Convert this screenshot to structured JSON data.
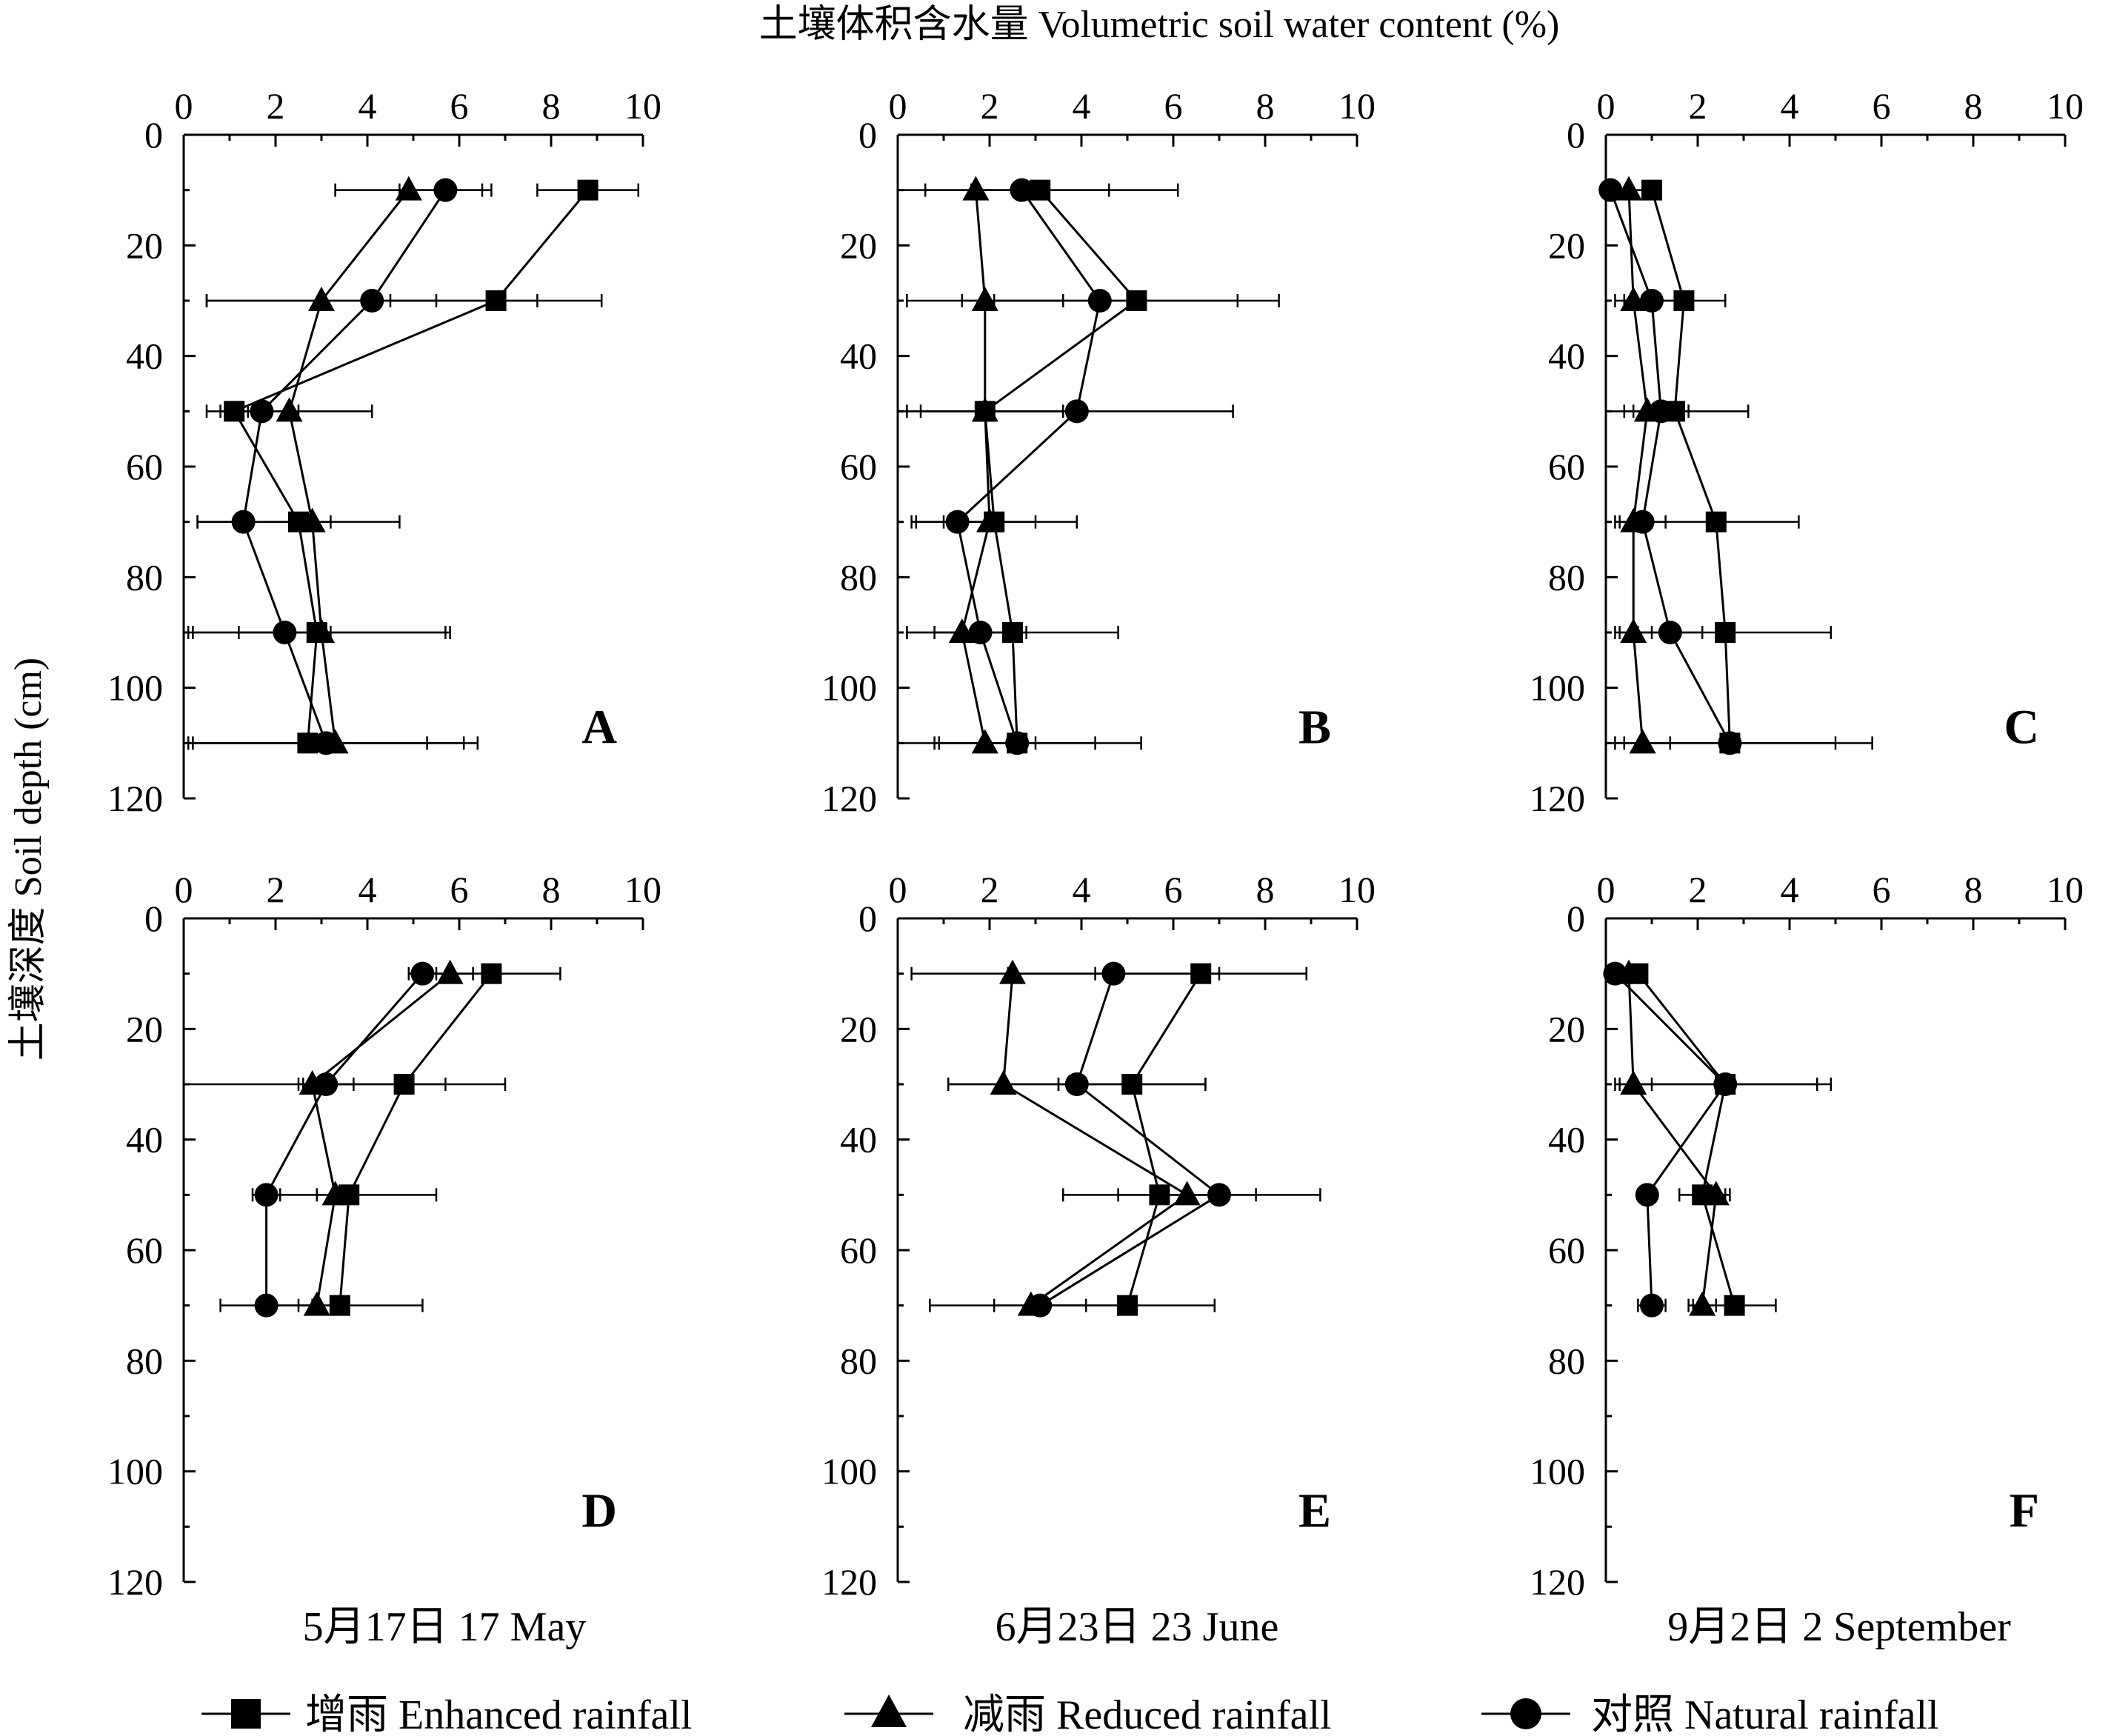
{
  "figure": {
    "xlabel": "土壤体积含水量 Volumetric soil water content (%)",
    "ylabel": "土壤深度 Soil depth (cm)",
    "column_labels": [
      "5月17日 17 May",
      "6月23日 23 June",
      "9月2日 2 September"
    ],
    "legend": [
      {
        "marker": "square",
        "label": "增雨 Enhanced rainfall"
      },
      {
        "marker": "triangle",
        "label": "减雨 Reduced rainfall"
      },
      {
        "marker": "circle",
        "label": "对照  Natural rainfall"
      }
    ],
    "x_ticks": [
      "0",
      "2",
      "4",
      "6",
      "8",
      "10"
    ],
    "y_ticks": [
      "0",
      "20",
      "40",
      "60",
      "80",
      "100",
      "120"
    ]
  },
  "chart_data": [
    {
      "panel": "A",
      "type": "line",
      "xlim": [
        0,
        10
      ],
      "ylim": [
        0,
        120
      ],
      "y_inverted": true,
      "series": [
        {
          "name": "增雨 Enhanced rainfall",
          "marker": "square",
          "points": [
            {
              "x": 8.8,
              "y": 10,
              "err": 1.1
            },
            {
              "x": 6.8,
              "y": 30,
              "err": 2.3
            },
            {
              "x": 1.1,
              "y": 50,
              "err": 0.3
            },
            {
              "x": 2.5,
              "y": 70,
              "err": 2.2
            },
            {
              "x": 2.9,
              "y": 90,
              "err": 2.8
            },
            {
              "x": 2.7,
              "y": 110,
              "err": 2.6
            }
          ]
        },
        {
          "name": "减雨 Reduced rainfall",
          "marker": "triangle",
          "points": [
            {
              "x": 4.9,
              "y": 10,
              "err": 1.6
            },
            {
              "x": 3.0,
              "y": 30,
              "err": 2.5
            },
            {
              "x": 2.3,
              "y": 50,
              "err": 1.8
            },
            {
              "x": 2.8,
              "y": 70,
              "err": 0.4
            },
            {
              "x": 3.0,
              "y": 90,
              "err": 2.8
            },
            {
              "x": 3.3,
              "y": 110,
              "err": 3.1
            }
          ]
        },
        {
          "name": "对照  Natural rainfall",
          "marker": "circle",
          "points": [
            {
              "x": 5.7,
              "y": 10,
              "err": 1.0
            },
            {
              "x": 4.1,
              "y": 30,
              "err": 3.6
            },
            {
              "x": 1.7,
              "y": 50,
              "err": 0.8
            },
            {
              "x": 1.3,
              "y": 70,
              "err": 1.0
            },
            {
              "x": 2.2,
              "y": 90,
              "err": 1.0
            },
            {
              "x": 3.1,
              "y": 110,
              "err": 3.0
            }
          ]
        }
      ]
    },
    {
      "panel": "B",
      "type": "line",
      "xlim": [
        0,
        10
      ],
      "ylim": [
        0,
        120
      ],
      "y_inverted": true,
      "series": [
        {
          "name": "增雨 Enhanced rainfall",
          "marker": "square",
          "points": [
            {
              "x": 3.1,
              "y": 10,
              "err": 1.5
            },
            {
              "x": 5.2,
              "y": 30,
              "err": 3.1
            },
            {
              "x": 1.9,
              "y": 50,
              "err": 1.9
            },
            {
              "x": 2.1,
              "y": 70,
              "err": 1.8
            },
            {
              "x": 2.5,
              "y": 90,
              "err": 2.3
            },
            {
              "x": 2.6,
              "y": 110,
              "err": 2.7
            }
          ]
        },
        {
          "name": "减雨 Reduced rainfall",
          "marker": "triangle",
          "points": [
            {
              "x": 1.7,
              "y": 10,
              "err": 1.1
            },
            {
              "x": 1.9,
              "y": 30,
              "err": 1.7
            },
            {
              "x": 1.9,
              "y": 50,
              "err": 1.7
            },
            {
              "x": 2.0,
              "y": 70,
              "err": 1.0
            },
            {
              "x": 1.4,
              "y": 90,
              "err": 1.2
            },
            {
              "x": 1.9,
              "y": 110,
              "err": 1.1
            }
          ]
        },
        {
          "name": "对照  Natural rainfall",
          "marker": "circle",
          "points": [
            {
              "x": 2.7,
              "y": 10,
              "err": 3.4
            },
            {
              "x": 4.4,
              "y": 30,
              "err": 3.0
            },
            {
              "x": 3.9,
              "y": 50,
              "err": 3.4
            },
            {
              "x": 1.3,
              "y": 70,
              "err": 0.9
            },
            {
              "x": 1.8,
              "y": 90,
              "err": 1.0
            },
            {
              "x": 2.6,
              "y": 110,
              "err": 1.7
            }
          ]
        }
      ]
    },
    {
      "panel": "C",
      "type": "line",
      "xlim": [
        0,
        10
      ],
      "ylim": [
        0,
        120
      ],
      "y_inverted": true,
      "series": [
        {
          "name": "增雨 Enhanced rainfall",
          "marker": "square",
          "points": [
            {
              "x": 1.0,
              "y": 10,
              "err": 0.2
            },
            {
              "x": 1.7,
              "y": 30,
              "err": 0.9
            },
            {
              "x": 1.5,
              "y": 50,
              "err": 1.6
            },
            {
              "x": 2.4,
              "y": 70,
              "err": 1.8
            },
            {
              "x": 2.6,
              "y": 90,
              "err": 2.3
            },
            {
              "x": 2.7,
              "y": 110,
              "err": 2.3
            }
          ]
        },
        {
          "name": "减雨 Reduced rainfall",
          "marker": "triangle",
          "points": [
            {
              "x": 0.5,
              "y": 10,
              "err": 0.4
            },
            {
              "x": 0.6,
              "y": 30,
              "err": 0.4
            },
            {
              "x": 0.9,
              "y": 50,
              "err": 0.5
            },
            {
              "x": 0.6,
              "y": 70,
              "err": 0.4
            },
            {
              "x": 0.6,
              "y": 90,
              "err": 0.4
            },
            {
              "x": 0.8,
              "y": 110,
              "err": 0.6
            }
          ]
        },
        {
          "name": "对照  Natural rainfall",
          "marker": "circle",
          "points": [
            {
              "x": 0.1,
              "y": 10,
              "err": 0.1
            },
            {
              "x": 1.0,
              "y": 30,
              "err": 0.6
            },
            {
              "x": 1.2,
              "y": 50,
              "err": 0.6
            },
            {
              "x": 0.8,
              "y": 70,
              "err": 0.5
            },
            {
              "x": 1.4,
              "y": 90,
              "err": 0.7
            },
            {
              "x": 2.7,
              "y": 110,
              "err": 3.1
            }
          ]
        }
      ]
    },
    {
      "panel": "D",
      "type": "line",
      "xlim": [
        0,
        10
      ],
      "ylim": [
        0,
        120
      ],
      "y_inverted": true,
      "series": [
        {
          "name": "增雨 Enhanced rainfall",
          "marker": "square",
          "points": [
            {
              "x": 6.7,
              "y": 10,
              "err": 1.5
            },
            {
              "x": 4.8,
              "y": 30,
              "err": 2.2
            },
            {
              "x": 3.6,
              "y": 50,
              "err": 1.9
            },
            {
              "x": 3.4,
              "y": 70,
              "err": 1.8
            }
          ]
        },
        {
          "name": "减雨 Reduced rainfall",
          "marker": "triangle",
          "points": [
            {
              "x": 5.8,
              "y": 10,
              "err": 0.5
            },
            {
              "x": 2.8,
              "y": 30,
              "err": 2.9
            },
            {
              "x": 3.3,
              "y": 50,
              "err": 0.4
            },
            {
              "x": 2.9,
              "y": 70,
              "err": 0.4
            }
          ]
        },
        {
          "name": "对照  Natural rainfall",
          "marker": "circle",
          "points": [
            {
              "x": 5.2,
              "y": 10,
              "err": 0.3
            },
            {
              "x": 3.1,
              "y": 30,
              "err": 0.6
            },
            {
              "x": 1.8,
              "y": 50,
              "err": 0.3
            },
            {
              "x": 1.8,
              "y": 70,
              "err": 1.0
            }
          ]
        }
      ]
    },
    {
      "panel": "E",
      "type": "line",
      "xlim": [
        0,
        10
      ],
      "ylim": [
        0,
        120
      ],
      "y_inverted": true,
      "series": [
        {
          "name": "增雨 Enhanced rainfall",
          "marker": "square",
          "points": [
            {
              "x": 6.6,
              "y": 10,
              "err": 2.3
            },
            {
              "x": 5.1,
              "y": 30,
              "err": 1.6
            },
            {
              "x": 5.7,
              "y": 50,
              "err": 2.1
            },
            {
              "x": 5.0,
              "y": 70,
              "err": 1.9
            }
          ]
        },
        {
          "name": "减雨 Reduced rainfall",
          "marker": "triangle",
          "points": [
            {
              "x": 2.5,
              "y": 10,
              "err": 2.2
            },
            {
              "x": 2.3,
              "y": 30,
              "err": 1.2
            },
            {
              "x": 6.3,
              "y": 50,
              "err": 0.7
            },
            {
              "x": 2.9,
              "y": 70,
              "err": 2.2
            }
          ]
        },
        {
          "name": "对照  Natural rainfall",
          "marker": "circle",
          "points": [
            {
              "x": 4.7,
              "y": 10,
              "err": 2.3
            },
            {
              "x": 3.9,
              "y": 30,
              "err": 2.8
            },
            {
              "x": 7.0,
              "y": 50,
              "err": 2.2
            },
            {
              "x": 3.1,
              "y": 70,
              "err": 1.0
            }
          ]
        }
      ]
    },
    {
      "panel": "F",
      "type": "line",
      "xlim": [
        0,
        10
      ],
      "ylim": [
        0,
        120
      ],
      "y_inverted": true,
      "series": [
        {
          "name": "增雨 Enhanced rainfall",
          "marker": "square",
          "points": [
            {
              "x": 0.7,
              "y": 10,
              "err": 0.1
            },
            {
              "x": 2.6,
              "y": 30,
              "err": 2.3
            },
            {
              "x": 2.1,
              "y": 50,
              "err": 0.5
            },
            {
              "x": 2.8,
              "y": 70,
              "err": 0.9
            }
          ]
        },
        {
          "name": "减雨 Reduced rainfall",
          "marker": "triangle",
          "points": [
            {
              "x": 0.5,
              "y": 10,
              "err": 0.1
            },
            {
              "x": 0.6,
              "y": 30,
              "err": 0.4
            },
            {
              "x": 2.4,
              "y": 50,
              "err": 0.3
            },
            {
              "x": 2.1,
              "y": 70,
              "err": 0.3
            }
          ]
        },
        {
          "name": "对照  Natural rainfall",
          "marker": "circle",
          "points": [
            {
              "x": 0.2,
              "y": 10,
              "err": 0.1
            },
            {
              "x": 2.6,
              "y": 30,
              "err": 2.0
            },
            {
              "x": 0.9,
              "y": 50,
              "err": 0.2
            },
            {
              "x": 1.0,
              "y": 70,
              "err": 0.3
            }
          ]
        }
      ]
    }
  ]
}
